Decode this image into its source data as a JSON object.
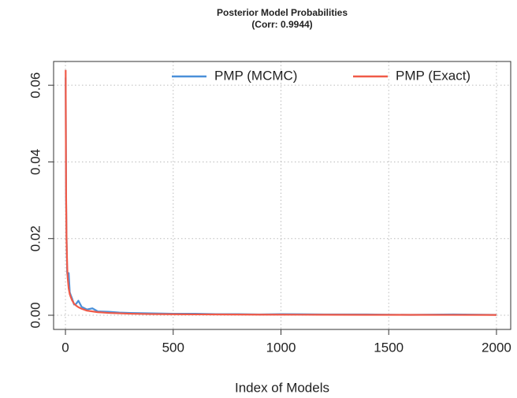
{
  "chart_data": {
    "type": "line",
    "title": "Posterior Model Probabilities",
    "subtitle": "(Corr: 0.9944)",
    "x_label": "Index of Models",
    "x": [
      1,
      2,
      3,
      5,
      8,
      10,
      15,
      20,
      25,
      30,
      40,
      50,
      60,
      75,
      100,
      125,
      150,
      200,
      250,
      300,
      400,
      500,
      600,
      700,
      800,
      900,
      1000,
      1200,
      1400,
      1600,
      1800,
      2000
    ],
    "series": [
      {
        "name": "PMP (MCMC)",
        "color": "#4a90d9",
        "values": [
          0.062,
          0.047,
          0.03,
          0.021,
          0.011,
          0.0105,
          0.011,
          0.006,
          0.0052,
          0.0045,
          0.0028,
          0.003,
          0.0038,
          0.0022,
          0.0015,
          0.0018,
          0.001,
          0.0009,
          0.0007,
          0.0006,
          0.0005,
          0.0004,
          0.0004,
          0.0003,
          0.0003,
          0.0002,
          0.0003,
          0.0002,
          0.0002,
          0.0001,
          0.0002,
          0.0001
        ]
      },
      {
        "name": "PMP (Exact)",
        "color": "#f05a48",
        "values": [
          0.064,
          0.045,
          0.032,
          0.02,
          0.013,
          0.01,
          0.007,
          0.0055,
          0.0047,
          0.004,
          0.003,
          0.0025,
          0.0021,
          0.0017,
          0.0012,
          0.001,
          0.0008,
          0.0006,
          0.0005,
          0.0004,
          0.0003,
          0.00025,
          0.00022,
          0.0002,
          0.00018,
          0.00016,
          0.00015,
          0.00013,
          0.00011,
          0.0001,
          9e-05,
          8e-05
        ]
      }
    ],
    "xlim": [
      -55,
      2066
    ],
    "ylim": [
      -0.0037,
      0.0662
    ],
    "xticks": [
      0,
      500,
      1000,
      1500,
      2000
    ],
    "yticks": [
      {
        "value": 0,
        "label": "0.00"
      },
      {
        "value": 0.02,
        "label": "0.02"
      },
      {
        "value": 0.04,
        "label": "0.04"
      },
      {
        "value": 0.06,
        "label": "0.06"
      }
    ],
    "grid": true,
    "legend": "top-right"
  }
}
